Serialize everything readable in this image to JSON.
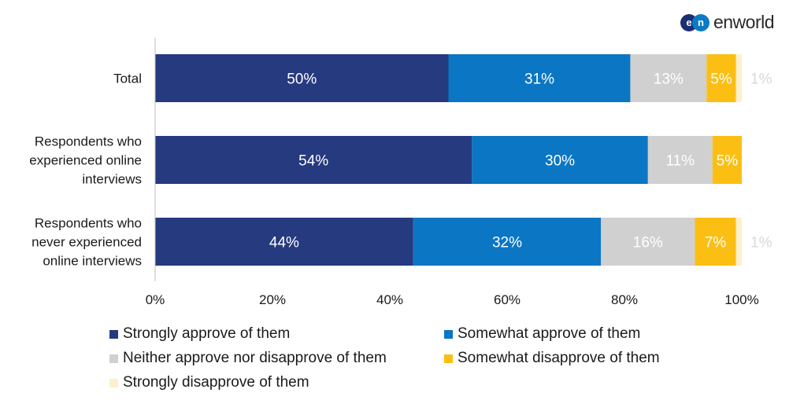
{
  "logo": {
    "mark_left": "e",
    "mark_right": "n",
    "text": "enworld"
  },
  "colors": {
    "strongly_approve": "#263a80",
    "somewhat_approve": "#0b76c4",
    "neither": "#d0d0d0",
    "somewhat_disapprove": "#fbbf14",
    "strongly_disapprove": "#fdf0cc",
    "axis": "#bfbfbf"
  },
  "chart_data": {
    "type": "bar",
    "orientation": "horizontal",
    "stacked": true,
    "categories": [
      "Total",
      "Respondents who experienced online interviews",
      "Respondents who never experienced online interviews"
    ],
    "category_lines": [
      [
        "Total"
      ],
      [
        "Respondents who",
        "experienced online",
        "interviews"
      ],
      [
        "Respondents who",
        "never experienced",
        "online interviews"
      ]
    ],
    "series": [
      {
        "name": "Strongly approve of them",
        "color_key": "strongly_approve",
        "label_color": "#ffffff",
        "values": [
          50,
          54,
          44
        ]
      },
      {
        "name": "Somewhat approve of them",
        "color_key": "somewhat_approve",
        "label_color": "#ffffff",
        "values": [
          31,
          30,
          32
        ]
      },
      {
        "name": "Neither approve nor disapprove of them",
        "color_key": "neither",
        "label_color": "#ffffff",
        "values": [
          13,
          11,
          16
        ]
      },
      {
        "name": "Somewhat disapprove of them",
        "color_key": "somewhat_disapprove",
        "label_color": "#ffffff",
        "values": [
          5,
          5,
          7
        ]
      },
      {
        "name": "Strongly disapprove of them",
        "color_key": "strongly_disapprove",
        "label_color": "#d9d9d9",
        "values": [
          1,
          0,
          1
        ]
      }
    ],
    "data_labels": [
      [
        "50%",
        "31%",
        "13%",
        "5%",
        "1%"
      ],
      [
        "54%",
        "30%",
        "11%",
        "5%",
        ""
      ],
      [
        "44%",
        "32%",
        "16%",
        "7%",
        "1%"
      ]
    ],
    "xlim": [
      0,
      100
    ],
    "xticks": [
      "0%",
      "20%",
      "40%",
      "60%",
      "80%",
      "100%"
    ],
    "legend_position": "bottom",
    "title": "",
    "xlabel": "",
    "ylabel": ""
  }
}
